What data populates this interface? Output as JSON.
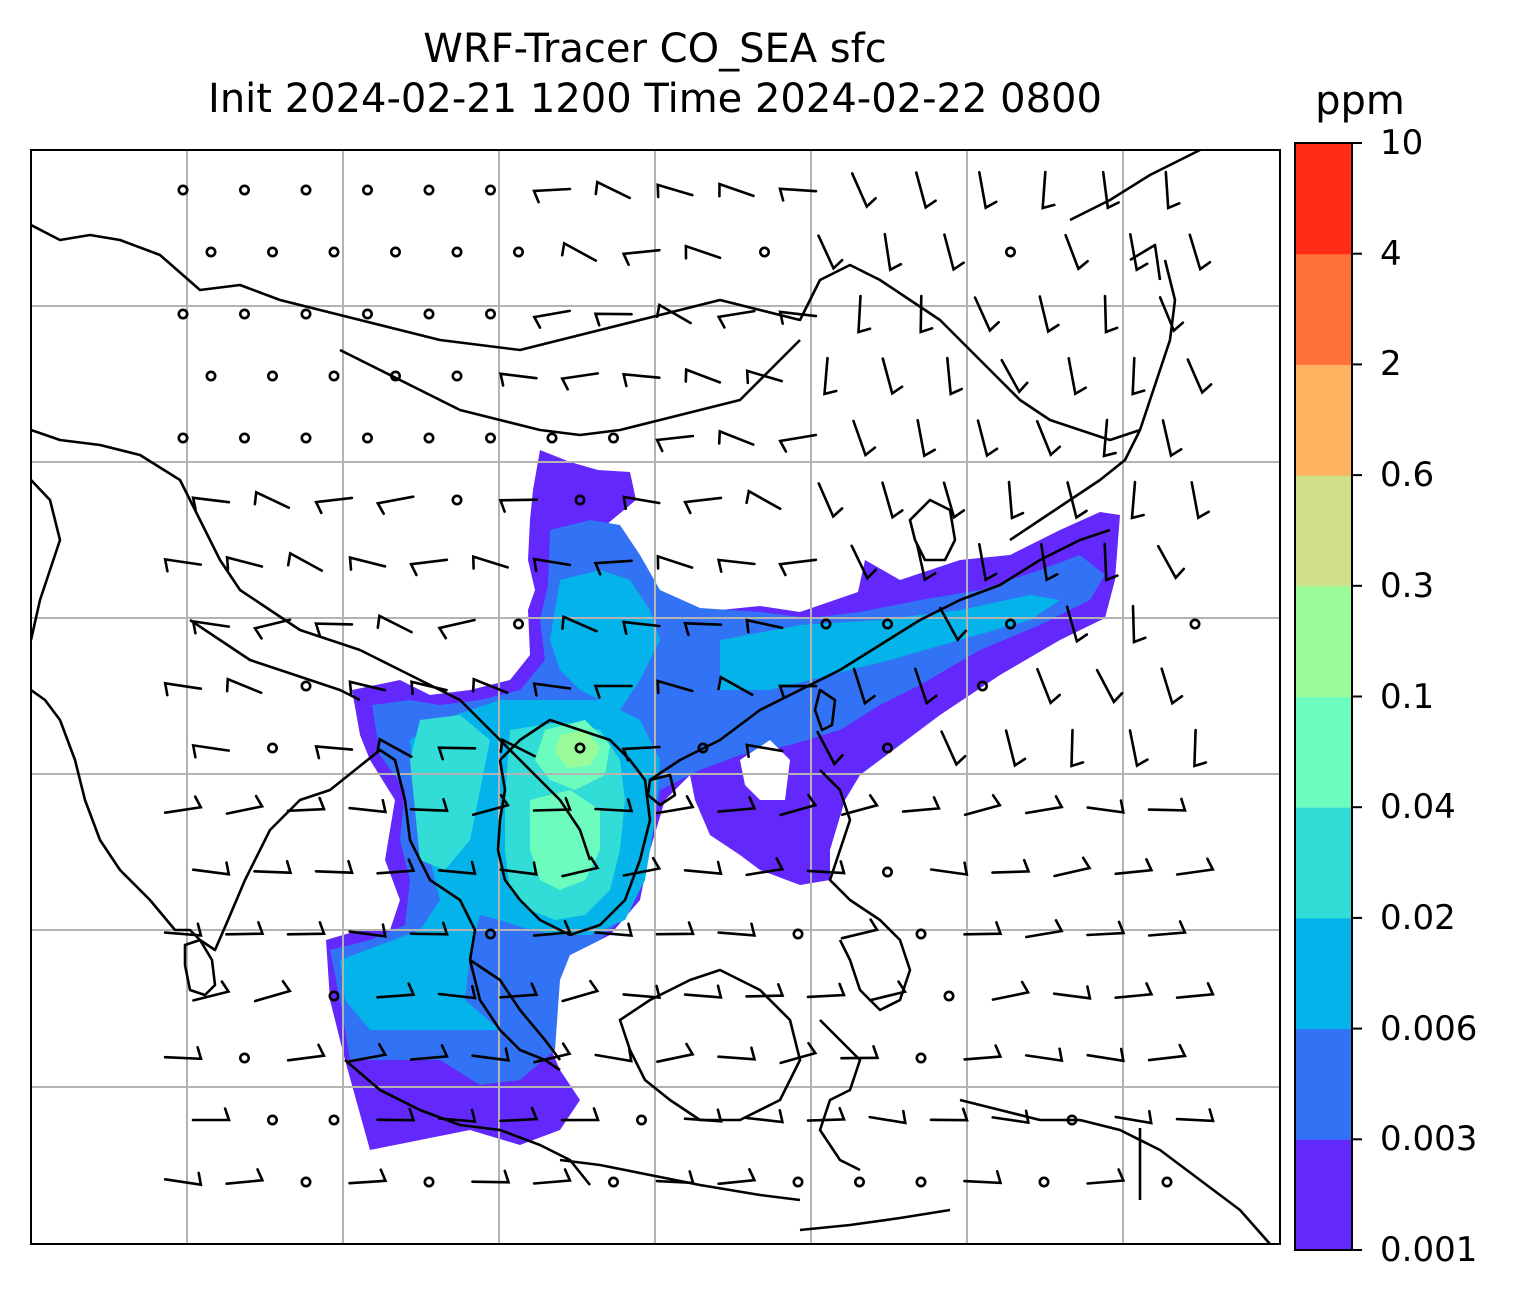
{
  "figure": {
    "title_line1": "WRF-Tracer CO_SEA sfc",
    "title_line2": "Init 2024-02-21 1200 Time 2024-02-22 0800"
  },
  "colorbar": {
    "unit": "ppm",
    "levels": [
      "0.001",
      "0.003",
      "0.006",
      "0.02",
      "0.04",
      "0.1",
      "0.3",
      "0.6",
      "2",
      "4",
      "10"
    ],
    "colors": [
      "#6328fb",
      "#3272f4",
      "#03b3e9",
      "#32dcd7",
      "#6cfcbe",
      "#9cfb99",
      "#cfe088",
      "#ffb260",
      "#ff7139",
      "#ff2c16"
    ]
  },
  "colors": {
    "coast": "#000000",
    "grid": "#b3b3b3",
    "barb": "#000000"
  },
  "icons": {
    "calm_wind": "open-circle",
    "wind": "wind-barb"
  }
}
